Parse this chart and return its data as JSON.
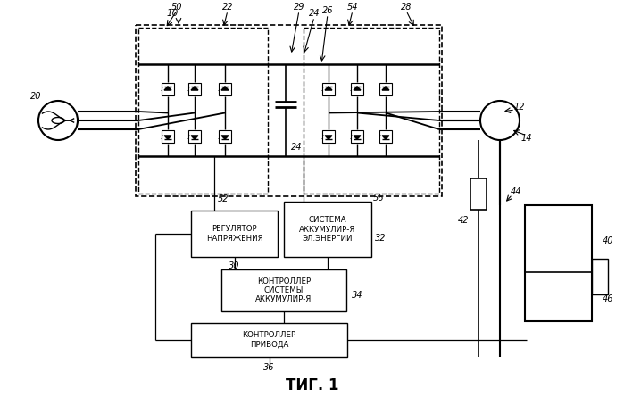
{
  "title": "ΤИГ. 1",
  "bg_color": "#ffffff",
  "lc": "#000000",
  "box1_text": "РЕГУЛЯТОР\nНАПРЯЖЕНИЯ",
  "box2_text": "СИСТЕМА\nАККУМУЛИР-Я\nЭЛ.ЭНЕРГИИ",
  "box3_text": "КОНТРОЛЛЕР\nСИСТЕМЫ\nАККУМУЛИР-Я",
  "box4_text": "КОНТРОЛЛЕР\nПРИВОДА",
  "n10": "10",
  "n12": "12",
  "n14": "14",
  "n20": "20",
  "n22": "22",
  "n24": "24",
  "n26": "26",
  "n28": "28",
  "n29": "29",
  "n30": "30",
  "n32": "32",
  "n34": "34",
  "n36": "36",
  "n40": "40",
  "n42": "42",
  "n44": "44",
  "n46": "46",
  "n50": "50",
  "n52": "52",
  "n54": "54",
  "n56": "56"
}
